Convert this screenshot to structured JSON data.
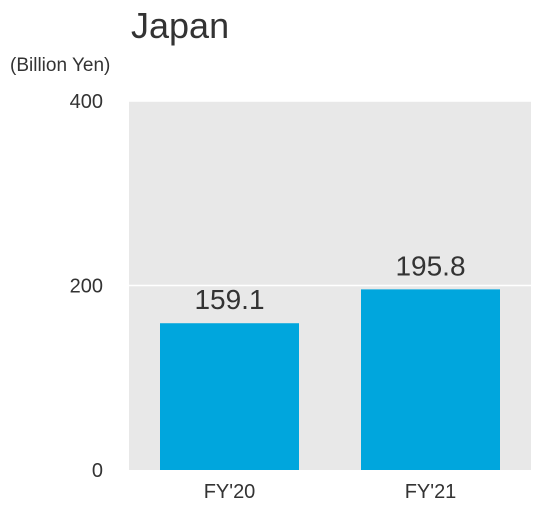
{
  "chart_data": {
    "type": "bar",
    "title": "Japan",
    "unit_label": "(Billion Yen)",
    "categories": [
      "FY'20",
      "FY'21"
    ],
    "values": [
      159.1,
      195.8
    ],
    "data_labels": [
      "159.1",
      "195.8"
    ],
    "ylim": [
      0,
      400
    ],
    "yticks": [
      0,
      200,
      400
    ],
    "ytick_labels": [
      "0",
      "200",
      "400"
    ],
    "grid": true,
    "bar_color": "#00a6dd",
    "plot_background": "#e8e8e8"
  }
}
